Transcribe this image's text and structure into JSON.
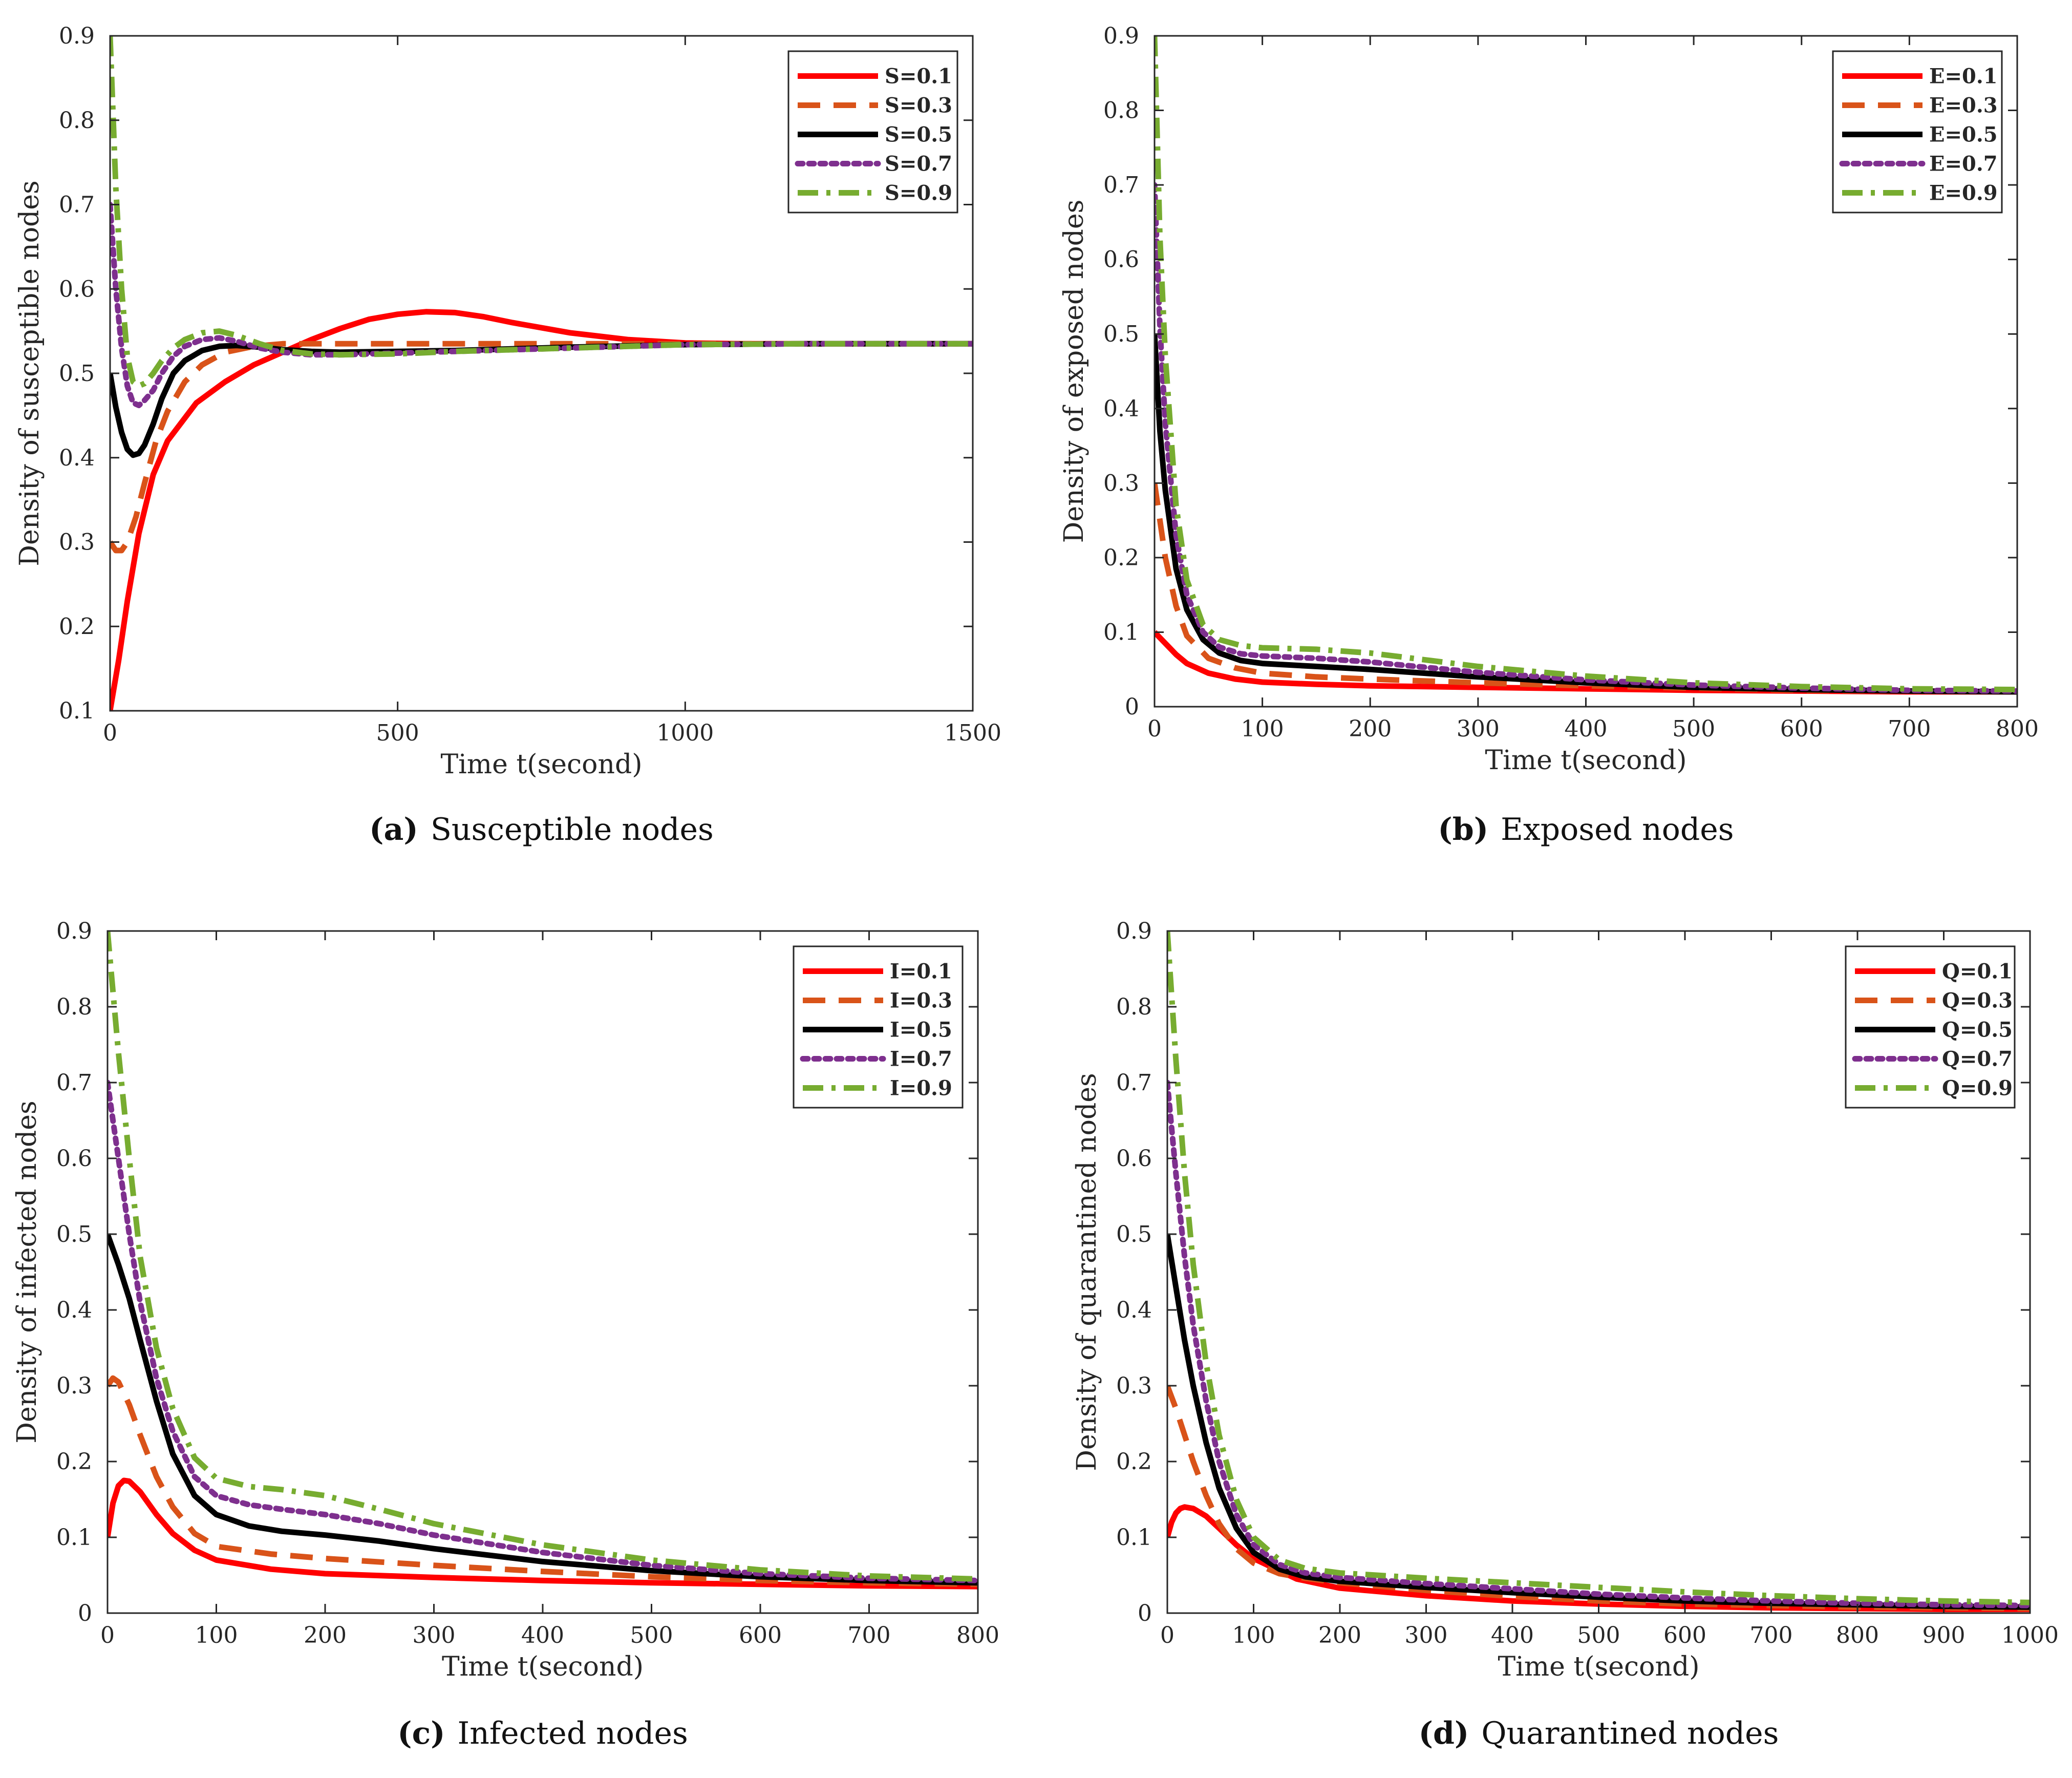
{
  "chart_data": [
    {
      "type": "line",
      "panel_letter": "(a)",
      "caption": "Susceptible nodes",
      "xlabel": "Time t(second)",
      "ylabel": "Density of susceptible nodes",
      "xlim": [
        0,
        1500
      ],
      "ylim": [
        0.1,
        0.9
      ],
      "xticks": [
        0,
        500,
        1000,
        1500
      ],
      "yticks": [
        0.1,
        0.2,
        0.3,
        0.4,
        0.5,
        0.6,
        0.7,
        0.8,
        0.9
      ],
      "legend_position": "top-right",
      "series": [
        {
          "name": "S=0.1",
          "color": "#ff0000",
          "style": "solid",
          "x": [
            0,
            15,
            30,
            50,
            75,
            100,
            150,
            200,
            250,
            300,
            350,
            400,
            450,
            500,
            550,
            600,
            650,
            700,
            800,
            900,
            1000,
            1100,
            1200,
            1300,
            1500
          ],
          "y": [
            0.1,
            0.16,
            0.23,
            0.31,
            0.38,
            0.42,
            0.465,
            0.49,
            0.51,
            0.525,
            0.54,
            0.553,
            0.564,
            0.57,
            0.573,
            0.572,
            0.567,
            0.56,
            0.548,
            0.54,
            0.536,
            0.535,
            0.535,
            0.535,
            0.535
          ]
        },
        {
          "name": "S=0.3",
          "color": "#d95319",
          "style": "dashed",
          "x": [
            0,
            10,
            20,
            30,
            45,
            60,
            80,
            100,
            130,
            160,
            200,
            250,
            300,
            400,
            600,
            800,
            1000,
            1500
          ],
          "y": [
            0.3,
            0.29,
            0.29,
            0.3,
            0.33,
            0.37,
            0.42,
            0.455,
            0.49,
            0.51,
            0.525,
            0.532,
            0.535,
            0.535,
            0.535,
            0.535,
            0.535,
            0.535
          ]
        },
        {
          "name": "S=0.5",
          "color": "#000000",
          "style": "solid",
          "x": [
            0,
            10,
            20,
            30,
            40,
            50,
            60,
            75,
            90,
            110,
            130,
            160,
            190,
            220,
            260,
            300,
            350,
            400,
            500,
            600,
            800,
            1000,
            1200,
            1500
          ],
          "y": [
            0.5,
            0.46,
            0.43,
            0.41,
            0.403,
            0.405,
            0.415,
            0.44,
            0.47,
            0.5,
            0.515,
            0.527,
            0.532,
            0.533,
            0.531,
            0.528,
            0.526,
            0.525,
            0.526,
            0.527,
            0.531,
            0.534,
            0.535,
            0.535
          ]
        },
        {
          "name": "S=0.7",
          "color": "#7e2f8e",
          "style": "dotted",
          "x": [
            0,
            10,
            20,
            30,
            40,
            50,
            60,
            75,
            90,
            110,
            130,
            160,
            190,
            220,
            260,
            300,
            350,
            400,
            500,
            600,
            800,
            1000,
            1200,
            1500
          ],
          "y": [
            0.7,
            0.6,
            0.53,
            0.485,
            0.465,
            0.462,
            0.468,
            0.48,
            0.5,
            0.52,
            0.532,
            0.54,
            0.542,
            0.538,
            0.53,
            0.525,
            0.522,
            0.522,
            0.524,
            0.526,
            0.53,
            0.534,
            0.535,
            0.535
          ]
        },
        {
          "name": "S=0.9",
          "color": "#77ac30",
          "style": "dashdot",
          "x": [
            0,
            10,
            20,
            30,
            40,
            50,
            60,
            75,
            90,
            110,
            130,
            160,
            190,
            220,
            260,
            300,
            350,
            400,
            500,
            600,
            800,
            1000,
            1200,
            1500
          ],
          "y": [
            0.9,
            0.72,
            0.6,
            0.52,
            0.49,
            0.485,
            0.488,
            0.5,
            0.515,
            0.53,
            0.54,
            0.548,
            0.55,
            0.545,
            0.535,
            0.527,
            0.523,
            0.522,
            0.523,
            0.526,
            0.53,
            0.534,
            0.535,
            0.535
          ]
        }
      ]
    },
    {
      "type": "line",
      "panel_letter": "(b)",
      "caption": "Exposed nodes",
      "xlabel": "Time t(second)",
      "ylabel": "Density of exposed nodes",
      "xlim": [
        0,
        800
      ],
      "ylim": [
        0,
        0.9
      ],
      "xticks": [
        0,
        100,
        200,
        300,
        400,
        500,
        600,
        700,
        800
      ],
      "yticks": [
        0,
        0.1,
        0.2,
        0.3,
        0.4,
        0.5,
        0.6,
        0.7,
        0.8,
        0.9
      ],
      "legend_position": "top-right",
      "series": [
        {
          "name": "E=0.1",
          "color": "#ff0000",
          "style": "solid",
          "x": [
            0,
            10,
            20,
            30,
            50,
            75,
            100,
            150,
            200,
            300,
            400,
            500,
            600,
            700,
            800
          ],
          "y": [
            0.1,
            0.085,
            0.07,
            0.058,
            0.045,
            0.037,
            0.033,
            0.03,
            0.028,
            0.026,
            0.024,
            0.022,
            0.021,
            0.02,
            0.02
          ]
        },
        {
          "name": "E=0.3",
          "color": "#d95319",
          "style": "dashed",
          "x": [
            0,
            10,
            20,
            30,
            50,
            75,
            100,
            150,
            200,
            300,
            400,
            500,
            600,
            700,
            800
          ],
          "y": [
            0.3,
            0.2,
            0.135,
            0.095,
            0.065,
            0.052,
            0.045,
            0.04,
            0.037,
            0.032,
            0.028,
            0.025,
            0.022,
            0.021,
            0.02
          ]
        },
        {
          "name": "E=0.5",
          "color": "#000000",
          "style": "solid",
          "x": [
            0,
            5,
            10,
            20,
            30,
            45,
            60,
            80,
            100,
            150,
            200,
            250,
            300,
            400,
            500,
            600,
            700,
            800
          ],
          "y": [
            0.5,
            0.37,
            0.29,
            0.185,
            0.13,
            0.09,
            0.072,
            0.062,
            0.058,
            0.054,
            0.05,
            0.045,
            0.04,
            0.032,
            0.026,
            0.023,
            0.021,
            0.02
          ]
        },
        {
          "name": "E=0.7",
          "color": "#7e2f8e",
          "style": "dotted",
          "x": [
            0,
            5,
            10,
            20,
            30,
            45,
            60,
            80,
            100,
            150,
            200,
            250,
            300,
            400,
            500,
            600,
            700,
            800
          ],
          "y": [
            0.7,
            0.51,
            0.38,
            0.23,
            0.15,
            0.1,
            0.08,
            0.071,
            0.068,
            0.065,
            0.06,
            0.053,
            0.046,
            0.036,
            0.029,
            0.025,
            0.022,
            0.021
          ]
        },
        {
          "name": "E=0.9",
          "color": "#77ac30",
          "style": "dashdot",
          "x": [
            0,
            5,
            10,
            20,
            30,
            45,
            60,
            80,
            100,
            150,
            200,
            250,
            300,
            400,
            500,
            600,
            700,
            800
          ],
          "y": [
            0.9,
            0.63,
            0.47,
            0.27,
            0.17,
            0.11,
            0.09,
            0.082,
            0.079,
            0.077,
            0.072,
            0.063,
            0.054,
            0.041,
            0.032,
            0.027,
            0.024,
            0.023
          ]
        }
      ]
    },
    {
      "type": "line",
      "panel_letter": "(c)",
      "caption": "Infected nodes",
      "xlabel": "Time t(second)",
      "ylabel": "Density of infected nodes",
      "xlim": [
        0,
        800
      ],
      "ylim": [
        0,
        0.9
      ],
      "xticks": [
        0,
        100,
        200,
        300,
        400,
        500,
        600,
        700,
        800
      ],
      "yticks": [
        0,
        0.1,
        0.2,
        0.3,
        0.4,
        0.5,
        0.6,
        0.7,
        0.8,
        0.9
      ],
      "legend_position": "top-right",
      "series": [
        {
          "name": "I=0.1",
          "color": "#ff0000",
          "style": "solid",
          "x": [
            0,
            5,
            10,
            15,
            20,
            30,
            45,
            60,
            80,
            100,
            150,
            200,
            300,
            400,
            500,
            600,
            700,
            800
          ],
          "y": [
            0.1,
            0.145,
            0.168,
            0.175,
            0.174,
            0.16,
            0.13,
            0.105,
            0.083,
            0.07,
            0.058,
            0.052,
            0.047,
            0.043,
            0.04,
            0.038,
            0.036,
            0.035
          ]
        },
        {
          "name": "I=0.3",
          "color": "#d95319",
          "style": "dashed",
          "x": [
            0,
            5,
            10,
            20,
            30,
            45,
            60,
            80,
            100,
            150,
            200,
            300,
            400,
            500,
            600,
            700,
            800
          ],
          "y": [
            0.3,
            0.31,
            0.305,
            0.275,
            0.235,
            0.18,
            0.14,
            0.105,
            0.088,
            0.078,
            0.072,
            0.063,
            0.055,
            0.048,
            0.043,
            0.04,
            0.038
          ]
        },
        {
          "name": "I=0.5",
          "color": "#000000",
          "style": "solid",
          "x": [
            0,
            10,
            20,
            30,
            45,
            60,
            80,
            100,
            130,
            160,
            200,
            250,
            300,
            400,
            500,
            600,
            700,
            800
          ],
          "y": [
            0.5,
            0.46,
            0.415,
            0.36,
            0.28,
            0.21,
            0.155,
            0.13,
            0.115,
            0.108,
            0.103,
            0.095,
            0.085,
            0.068,
            0.056,
            0.048,
            0.043,
            0.04
          ]
        },
        {
          "name": "I=0.7",
          "color": "#7e2f8e",
          "style": "dotted",
          "x": [
            0,
            10,
            20,
            30,
            45,
            60,
            80,
            100,
            130,
            160,
            200,
            250,
            300,
            400,
            500,
            600,
            700,
            800
          ],
          "y": [
            0.7,
            0.6,
            0.5,
            0.41,
            0.31,
            0.24,
            0.18,
            0.155,
            0.143,
            0.137,
            0.13,
            0.118,
            0.103,
            0.08,
            0.063,
            0.052,
            0.046,
            0.043
          ]
        },
        {
          "name": "I=0.9",
          "color": "#77ac30",
          "style": "dashdot",
          "x": [
            0,
            10,
            20,
            30,
            45,
            60,
            80,
            100,
            130,
            160,
            200,
            250,
            300,
            400,
            500,
            600,
            700,
            800
          ],
          "y": [
            0.9,
            0.74,
            0.6,
            0.47,
            0.35,
            0.27,
            0.205,
            0.178,
            0.167,
            0.163,
            0.155,
            0.137,
            0.118,
            0.09,
            0.07,
            0.057,
            0.049,
            0.045
          ]
        }
      ]
    },
    {
      "type": "line",
      "panel_letter": "(d)",
      "caption": "Quarantined nodes",
      "xlabel": "Time t(second)",
      "ylabel": "Density of quarantined nodes",
      "xlim": [
        0,
        1000
      ],
      "ylim": [
        0,
        0.9
      ],
      "xticks": [
        0,
        100,
        200,
        300,
        400,
        500,
        600,
        700,
        800,
        900,
        1000
      ],
      "yticks": [
        0,
        0.1,
        0.2,
        0.3,
        0.4,
        0.5,
        0.6,
        0.7,
        0.8,
        0.9
      ],
      "legend_position": "top-right",
      "series": [
        {
          "name": "Q=0.1",
          "color": "#ff0000",
          "style": "solid",
          "x": [
            0,
            5,
            10,
            15,
            20,
            30,
            45,
            60,
            80,
            100,
            150,
            200,
            300,
            400,
            500,
            600,
            700,
            800,
            900,
            1000
          ],
          "y": [
            0.1,
            0.12,
            0.132,
            0.138,
            0.14,
            0.138,
            0.128,
            0.112,
            0.09,
            0.072,
            0.045,
            0.033,
            0.023,
            0.016,
            0.012,
            0.009,
            0.007,
            0.006,
            0.005,
            0.005
          ]
        },
        {
          "name": "Q=0.3",
          "color": "#d95319",
          "style": "dashed",
          "x": [
            0,
            10,
            20,
            30,
            45,
            60,
            80,
            100,
            130,
            160,
            200,
            300,
            400,
            500,
            600,
            700,
            800,
            900,
            1000
          ],
          "y": [
            0.3,
            0.27,
            0.235,
            0.2,
            0.155,
            0.118,
            0.085,
            0.066,
            0.052,
            0.046,
            0.04,
            0.03,
            0.022,
            0.016,
            0.012,
            0.01,
            0.008,
            0.007,
            0.006
          ]
        },
        {
          "name": "Q=0.5",
          "color": "#000000",
          "style": "solid",
          "x": [
            0,
            10,
            20,
            30,
            45,
            60,
            80,
            100,
            130,
            160,
            200,
            300,
            400,
            500,
            600,
            700,
            800,
            900,
            1000
          ],
          "y": [
            0.5,
            0.43,
            0.36,
            0.3,
            0.225,
            0.165,
            0.112,
            0.08,
            0.058,
            0.048,
            0.042,
            0.034,
            0.027,
            0.021,
            0.016,
            0.013,
            0.011,
            0.009,
            0.008
          ]
        },
        {
          "name": "Q=0.7",
          "color": "#7e2f8e",
          "style": "dotted",
          "x": [
            0,
            10,
            20,
            30,
            45,
            60,
            80,
            100,
            130,
            160,
            200,
            300,
            400,
            500,
            600,
            700,
            800,
            900,
            1000
          ],
          "y": [
            0.7,
            0.58,
            0.47,
            0.38,
            0.28,
            0.2,
            0.13,
            0.09,
            0.064,
            0.053,
            0.047,
            0.039,
            0.032,
            0.025,
            0.02,
            0.016,
            0.013,
            0.011,
            0.01
          ]
        },
        {
          "name": "Q=0.9",
          "color": "#77ac30",
          "style": "dashdot",
          "x": [
            0,
            10,
            20,
            30,
            45,
            60,
            80,
            100,
            130,
            160,
            200,
            300,
            400,
            500,
            600,
            700,
            800,
            900,
            1000
          ],
          "y": [
            0.9,
            0.73,
            0.58,
            0.46,
            0.33,
            0.235,
            0.15,
            0.1,
            0.07,
            0.059,
            0.053,
            0.046,
            0.04,
            0.034,
            0.028,
            0.023,
            0.019,
            0.016,
            0.014
          ]
        }
      ]
    }
  ]
}
